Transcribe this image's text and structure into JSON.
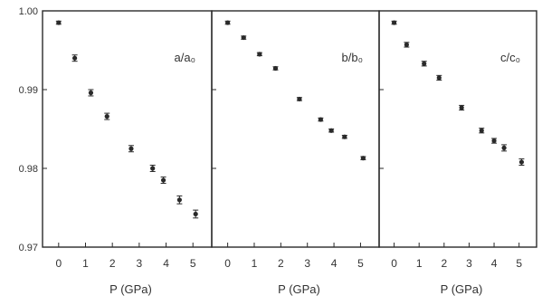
{
  "chart_data": [
    {
      "type": "scatter",
      "panel_label": "a/a₀",
      "xlabel": "P  (GPa)",
      "ylabel": "",
      "x_ticks": [
        "0",
        "1",
        "2",
        "3",
        "4",
        "5"
      ],
      "y_ticks": [
        "1.00",
        "0.99",
        "0.98",
        "0.97"
      ],
      "xlim": [
        -0.6,
        5.7
      ],
      "ylim": [
        0.97,
        1.0
      ],
      "grid": false,
      "series": [
        {
          "x": [
            0.0,
            0.6,
            1.2,
            1.8,
            2.7,
            3.5,
            3.9,
            4.5,
            5.1
          ],
          "y": [
            0.9985,
            0.994,
            0.9896,
            0.9866,
            0.9825,
            0.98,
            0.9785,
            0.976,
            0.9742
          ],
          "yerr": [
            0.0002,
            0.0004,
            0.0004,
            0.0004,
            0.0004,
            0.0004,
            0.0004,
            0.0005,
            0.0005
          ]
        }
      ]
    },
    {
      "type": "scatter",
      "panel_label": "b/b₀",
      "xlabel": "P  (GPa)",
      "ylabel": "",
      "x_ticks": [
        "0",
        "1",
        "2",
        "3",
        "4",
        "5"
      ],
      "xlim": [
        -0.6,
        5.7
      ],
      "ylim": [
        0.97,
        1.0
      ],
      "grid": false,
      "series": [
        {
          "x": [
            0.0,
            0.6,
            1.2,
            1.8,
            2.7,
            3.5,
            3.9,
            4.4,
            5.1
          ],
          "y": [
            0.9985,
            0.9966,
            0.9945,
            0.9927,
            0.9888,
            0.9862,
            0.9848,
            0.984,
            0.9813
          ],
          "yerr": [
            0.0002,
            0.0002,
            0.0002,
            0.0002,
            0.0002,
            0.0002,
            0.0002,
            0.0002,
            0.0002
          ]
        }
      ]
    },
    {
      "type": "scatter",
      "panel_label": "c/c₀",
      "xlabel": "P  (GPa)",
      "ylabel": "",
      "x_ticks": [
        "0",
        "1",
        "2",
        "3",
        "4",
        "5"
      ],
      "xlim": [
        -0.6,
        5.7
      ],
      "ylim": [
        0.97,
        1.0
      ],
      "grid": false,
      "series": [
        {
          "x": [
            0.0,
            0.5,
            1.2,
            1.8,
            2.7,
            3.5,
            4.0,
            4.4,
            5.1
          ],
          "y": [
            0.9985,
            0.9957,
            0.9933,
            0.9915,
            0.9877,
            0.9848,
            0.9835,
            0.9826,
            0.9808
          ],
          "yerr": [
            0.0002,
            0.0003,
            0.0003,
            0.0003,
            0.0003,
            0.0003,
            0.0003,
            0.0004,
            0.0004
          ]
        }
      ]
    }
  ]
}
